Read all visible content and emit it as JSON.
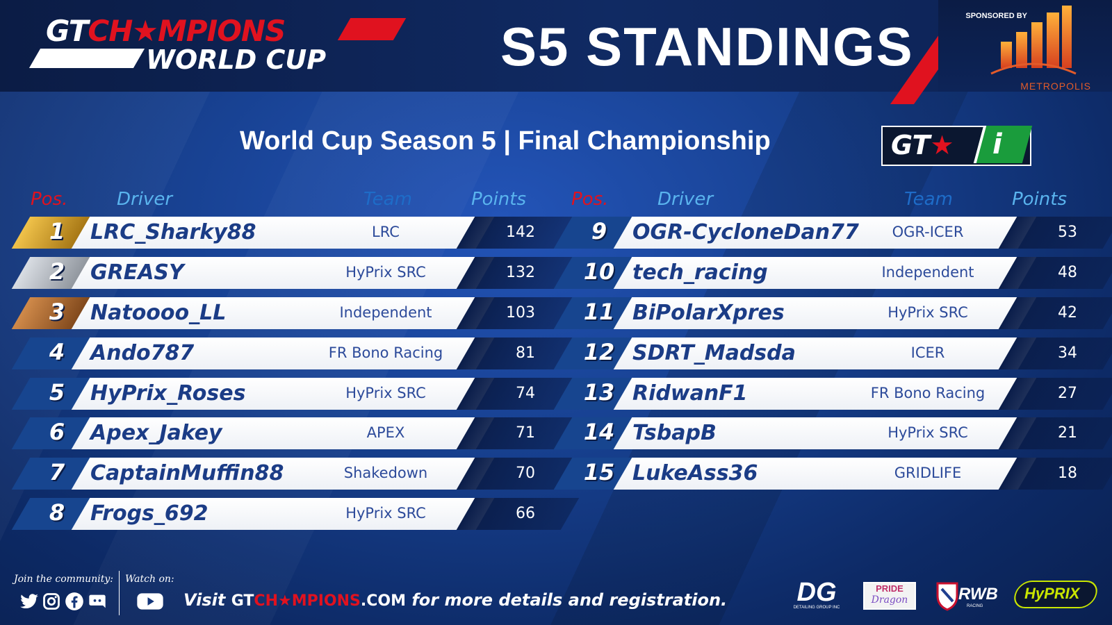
{
  "header": {
    "logo_top_white": "GT",
    "logo_top_red": "CH★MPIONS",
    "logo_bottom": "WORLD CUP",
    "title": "S5 STANDINGS",
    "sponsored_by": "SPONSORED BY",
    "sponsor_name": "METROPOLIS"
  },
  "subtitle": "World Cup Season 5 | Final Championship",
  "series_badge": {
    "left": "GT",
    "star": "★",
    "right": "i"
  },
  "columns": {
    "pos": "Pos.",
    "driver": "Driver",
    "team": "Team",
    "points": "Points"
  },
  "standings": [
    {
      "pos": "1",
      "driver": "LRC_Sharky88",
      "team": "LRC",
      "points": "142"
    },
    {
      "pos": "2",
      "driver": "GREASY",
      "team": "HyPrix SRC",
      "points": "132"
    },
    {
      "pos": "3",
      "driver": "Natoooo_LL",
      "team": "Independent",
      "points": "103"
    },
    {
      "pos": "4",
      "driver": "Ando787",
      "team": "FR Bono Racing",
      "points": "81"
    },
    {
      "pos": "5",
      "driver": "HyPrix_Roses",
      "team": "HyPrix SRC",
      "points": "74"
    },
    {
      "pos": "6",
      "driver": "Apex_Jakey",
      "team": "APEX",
      "points": "71"
    },
    {
      "pos": "7",
      "driver": "CaptainMuffin88",
      "team": "Shakedown",
      "points": "70"
    },
    {
      "pos": "8",
      "driver": "Frogs_692",
      "team": "HyPrix SRC",
      "points": "66"
    },
    {
      "pos": "9",
      "driver": "OGR-CycloneDan77",
      "team": "OGR-ICER",
      "points": "53"
    },
    {
      "pos": "10",
      "driver": "tech_racing",
      "team": "Independent",
      "points": "48"
    },
    {
      "pos": "11",
      "driver": "BiPolarXpres",
      "team": "HyPrix SRC",
      "points": "42"
    },
    {
      "pos": "12",
      "driver": "SDRT_Madsda",
      "team": "ICER",
      "points": "34"
    },
    {
      "pos": "13",
      "driver": "RidwanF1",
      "team": "FR Bono Racing",
      "points": "27"
    },
    {
      "pos": "14",
      "driver": "TsbapB",
      "team": "HyPrix SRC",
      "points": "21"
    },
    {
      "pos": "15",
      "driver": "LukeAss36",
      "team": "GRIDLIFE",
      "points": "18"
    }
  ],
  "footer": {
    "join_label": "Join the community:",
    "watch_label": "Watch on:",
    "cta_visit": "Visit",
    "cta_site_white": "GT",
    "cta_site_red": "CH★MPIONS",
    "cta_site_suffix": ".COM",
    "cta_tail": "for more details and registration.",
    "social_icons": [
      "twitter-icon",
      "instagram-icon",
      "facebook-icon",
      "discord-icon"
    ],
    "watch_icon": "youtube-icon",
    "sponsors": [
      {
        "main": "DG",
        "sub": "DETAILING GROUP INC"
      },
      {
        "main": "PRIDE",
        "sub": "Dragon"
      },
      {
        "main": "RWB",
        "sub": "RACING"
      },
      {
        "main": "HyPRIX",
        "sub": ""
      }
    ]
  },
  "colors": {
    "accent_red": "#e0121f",
    "navy": "#0b1c45",
    "row_blue": "#17458f",
    "driver_text": "#1b3c86",
    "gold": "#f0c24a",
    "silver": "#d9dde3",
    "bronze": "#d08a4a"
  }
}
